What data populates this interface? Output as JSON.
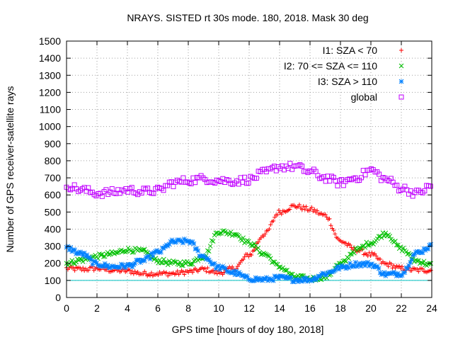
{
  "chart_data": {
    "type": "scatter",
    "title": "NRAYS. SISTED rt 30s mode. 180, 2018. Mask 30 deg",
    "xlabel": "GPS time [hours of doy 180, 2018]",
    "ylabel": "Number of GPS receiver-satellite rays",
    "xlim": [
      0,
      24
    ],
    "ylim": [
      0,
      1500
    ],
    "xticks": [
      0,
      2,
      4,
      6,
      8,
      10,
      12,
      14,
      16,
      18,
      20,
      22,
      24
    ],
    "yticks": [
      0,
      100,
      200,
      300,
      400,
      500,
      600,
      700,
      800,
      900,
      1000,
      1100,
      1200,
      1300,
      1400,
      1500
    ],
    "grid": true,
    "legend_position": "top-right",
    "reference_line": {
      "y": 100,
      "color": "#00c0c0"
    },
    "series": [
      {
        "name": "I1: SZA < 70",
        "color": "#ff0000",
        "marker": "plus",
        "points": [
          [
            0,
            170
          ],
          [
            1,
            165
          ],
          [
            2,
            170
          ],
          [
            3,
            160
          ],
          [
            4,
            155
          ],
          [
            5,
            140
          ],
          [
            6,
            140
          ],
          [
            7,
            140
          ],
          [
            8,
            150
          ],
          [
            9,
            165
          ],
          [
            10,
            145
          ],
          [
            11,
            170
          ],
          [
            12,
            250
          ],
          [
            13,
            370
          ],
          [
            14,
            500
          ],
          [
            15,
            535
          ],
          [
            16,
            515
          ],
          [
            17,
            480
          ],
          [
            18,
            330
          ],
          [
            19,
            280
          ],
          [
            20,
            250
          ],
          [
            21,
            195
          ],
          [
            22,
            170
          ],
          [
            23,
            160
          ],
          [
            24,
            160
          ]
        ]
      },
      {
        "name": "I2: 70 <= SZA <= 110",
        "color": "#00c000",
        "marker": "cross",
        "points": [
          [
            0,
            200
          ],
          [
            1,
            220
          ],
          [
            2,
            240
          ],
          [
            3,
            255
          ],
          [
            4,
            280
          ],
          [
            5,
            270
          ],
          [
            6,
            215
          ],
          [
            7,
            200
          ],
          [
            8,
            200
          ],
          [
            9,
            240
          ],
          [
            10,
            385
          ],
          [
            11,
            375
          ],
          [
            12,
            320
          ],
          [
            13,
            255
          ],
          [
            14,
            180
          ],
          [
            15,
            120
          ],
          [
            16,
            110
          ],
          [
            17,
            120
          ],
          [
            18,
            195
          ],
          [
            19,
            275
          ],
          [
            20,
            320
          ],
          [
            21,
            375
          ],
          [
            22,
            285
          ],
          [
            23,
            215
          ],
          [
            24,
            190
          ]
        ]
      },
      {
        "name": "I3: SZA > 110",
        "color": "#0080ff",
        "marker": "star",
        "points": [
          [
            0,
            290
          ],
          [
            1,
            255
          ],
          [
            2,
            195
          ],
          [
            3,
            180
          ],
          [
            4,
            185
          ],
          [
            5,
            215
          ],
          [
            6,
            265
          ],
          [
            7,
            325
          ],
          [
            8,
            330
          ],
          [
            9,
            240
          ],
          [
            10,
            175
          ],
          [
            11,
            145
          ],
          [
            12,
            110
          ],
          [
            13,
            105
          ],
          [
            14,
            115
          ],
          [
            15,
            105
          ],
          [
            16,
            105
          ],
          [
            17,
            140
          ],
          [
            18,
            175
          ],
          [
            19,
            195
          ],
          [
            20,
            195
          ],
          [
            21,
            135
          ],
          [
            22,
            140
          ],
          [
            23,
            260
          ],
          [
            24,
            300
          ]
        ]
      },
      {
        "name": "global",
        "color": "#c000ff",
        "marker": "square",
        "points": [
          [
            0,
            655
          ],
          [
            1,
            630
          ],
          [
            2,
            610
          ],
          [
            3,
            615
          ],
          [
            4,
            630
          ],
          [
            5,
            620
          ],
          [
            6,
            625
          ],
          [
            7,
            670
          ],
          [
            8,
            685
          ],
          [
            9,
            695
          ],
          [
            10,
            685
          ],
          [
            11,
            680
          ],
          [
            12,
            690
          ],
          [
            13,
            730
          ],
          [
            14,
            765
          ],
          [
            15,
            765
          ],
          [
            16,
            735
          ],
          [
            17,
            700
          ],
          [
            18,
            670
          ],
          [
            19,
            700
          ],
          [
            20,
            745
          ],
          [
            21,
            690
          ],
          [
            22,
            640
          ],
          [
            23,
            610
          ],
          [
            24,
            650
          ]
        ]
      }
    ]
  }
}
